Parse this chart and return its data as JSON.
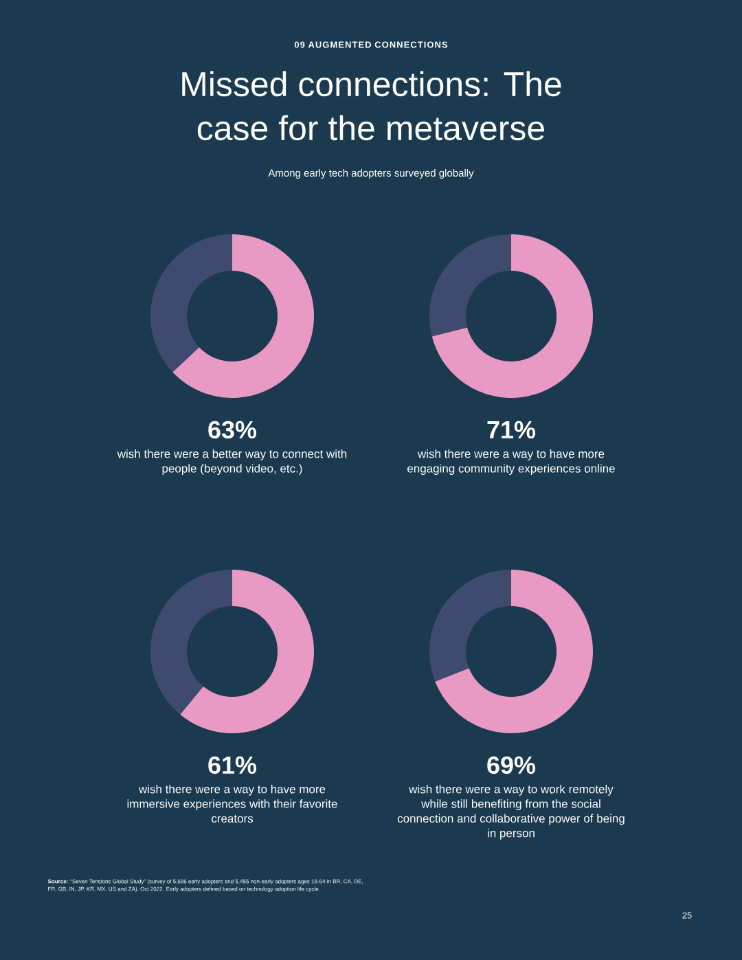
{
  "chart_data": [
    {
      "type": "other",
      "title": "Missed connections: The case for the metaverse",
      "subtitle": "Among early tech adopters surveyed globally",
      "annotations": [
        "09 AUGMENTED CONNECTIONS",
        "**Source:** “Seven Tensions Global Study” (survey of 5,686 early adopters and 5,455 non-early adopters ages 18-64 in BR, CA, DE, FR, GB, IN, JP, KR, MX, US and ZA), Oct 2022. Early adopters defined based on technology adoption life cycle.",
        "25"
      ]
    },
    {
      "type": "donut",
      "categories": [
        null,
        null
      ],
      "values": [
        63,
        37
      ],
      "colors": [
        "#e899c4",
        "#3f4b6e"
      ],
      "value_labels": [
        "63%",
        null
      ],
      "annotations": [
        "wish there were a better way to connect with people (beyond video, etc.)"
      ]
    },
    {
      "type": "donut",
      "categories": [
        null,
        null
      ],
      "values": [
        71,
        29
      ],
      "colors": [
        "#e899c4",
        "#3f4b6e"
      ],
      "value_labels": [
        "71%",
        null
      ],
      "annotations": [
        "wish there were a way to have more engaging community experiences online"
      ]
    },
    {
      "type": "donut",
      "categories": [
        null,
        null
      ],
      "values": [
        61,
        39
      ],
      "colors": [
        "#e899c4",
        "#3f4b6e"
      ],
      "value_labels": [
        "61%",
        null
      ],
      "annotations": [
        "wish there were a way to have more immersive experiences with their favorite creators"
      ]
    },
    {
      "type": "donut",
      "categories": [
        null,
        null
      ],
      "values": [
        69,
        31
      ],
      "colors": [
        "#e899c4",
        "#3f4b6e"
      ],
      "value_labels": [
        "69%",
        null
      ],
      "annotations": [
        "wish there were a way to work remotely while still benefiting from the social connection and collaborative power of being in person"
      ]
    }
  ]
}
